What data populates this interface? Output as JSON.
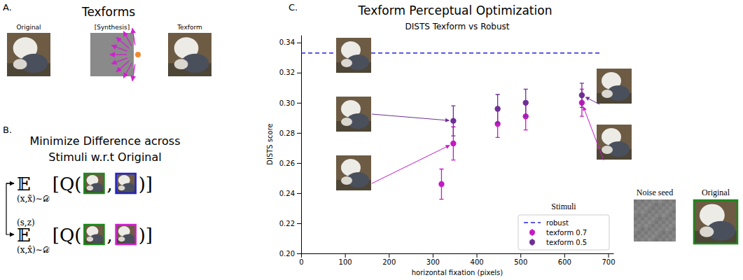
{
  "panel_a": {
    "letter": "A.",
    "title": "Texforms",
    "labels": [
      "Original",
      "[Synthesis]",
      "Texform"
    ]
  },
  "panel_b": {
    "letter": "B.",
    "title": "Minimize Difference across Stimuli w.r.t Original",
    "formulas": [
      {
        "operator": "𝔼",
        "subscript": "(x,x̃)∼𝒟",
        "open": "[Q(",
        "separator": ",",
        "close": ")]"
      },
      {
        "operator": "𝔼",
        "superscript": "(s,z)",
        "subscript": "(x,x̂)∼𝒟",
        "open": "[Q(",
        "separator": ",",
        "close": ")]"
      }
    ]
  },
  "panel_c": {
    "letter": "C.",
    "title": "Texform Perceptual Optimization",
    "legend_title": "Stimuli",
    "image_labels": [
      "Noise seed",
      "Original"
    ]
  },
  "chart_data": {
    "type": "scatter",
    "title": "DISTS Texform vs Robust",
    "x_label": "horizontal fixation (pixels)",
    "y_label": "DISTS score",
    "xlim": [
      0,
      712
    ],
    "ylim": [
      0.2,
      0.345
    ],
    "xticks": [
      0,
      100,
      200,
      300,
      400,
      500,
      600,
      700
    ],
    "yticks": [
      {
        "value": 0.2,
        "label": "0.20"
      },
      {
        "value": 0.22,
        "label": "0.22"
      },
      {
        "value": 0.24,
        "label": "0.24"
      },
      {
        "value": 0.26,
        "label": "0.26"
      },
      {
        "value": 0.28,
        "label": "0.28"
      },
      {
        "value": 0.3,
        "label": "0.30"
      },
      {
        "value": 0.32,
        "label": "0.32"
      },
      {
        "value": 0.34,
        "label": "0.34"
      }
    ],
    "grid": false,
    "legend": "lower right",
    "series": [
      {
        "name": "robust",
        "type": "line",
        "line_style": "dashed",
        "color": "#2323d6",
        "x": [
          0,
          686
        ],
        "values": [
          0.333,
          0.333
        ]
      },
      {
        "name": "texform 0.7",
        "type": "scatter",
        "marker": "circle",
        "color": "#c51bc5",
        "x": [
          320,
          347,
          448,
          512,
          640
        ],
        "values": [
          0.246,
          0.273,
          0.286,
          0.291,
          0.3
        ],
        "errors": [
          0.01,
          0.011,
          0.009,
          0.009,
          0.009
        ]
      },
      {
        "name": "texform 0.5",
        "type": "scatter",
        "marker": "circle",
        "color": "#6e2f96",
        "x": [
          347,
          448,
          512,
          640
        ],
        "values": [
          0.288,
          0.296,
          0.3,
          0.305
        ],
        "errors": [
          0.01,
          0.0095,
          0.009,
          0.008
        ]
      }
    ]
  }
}
